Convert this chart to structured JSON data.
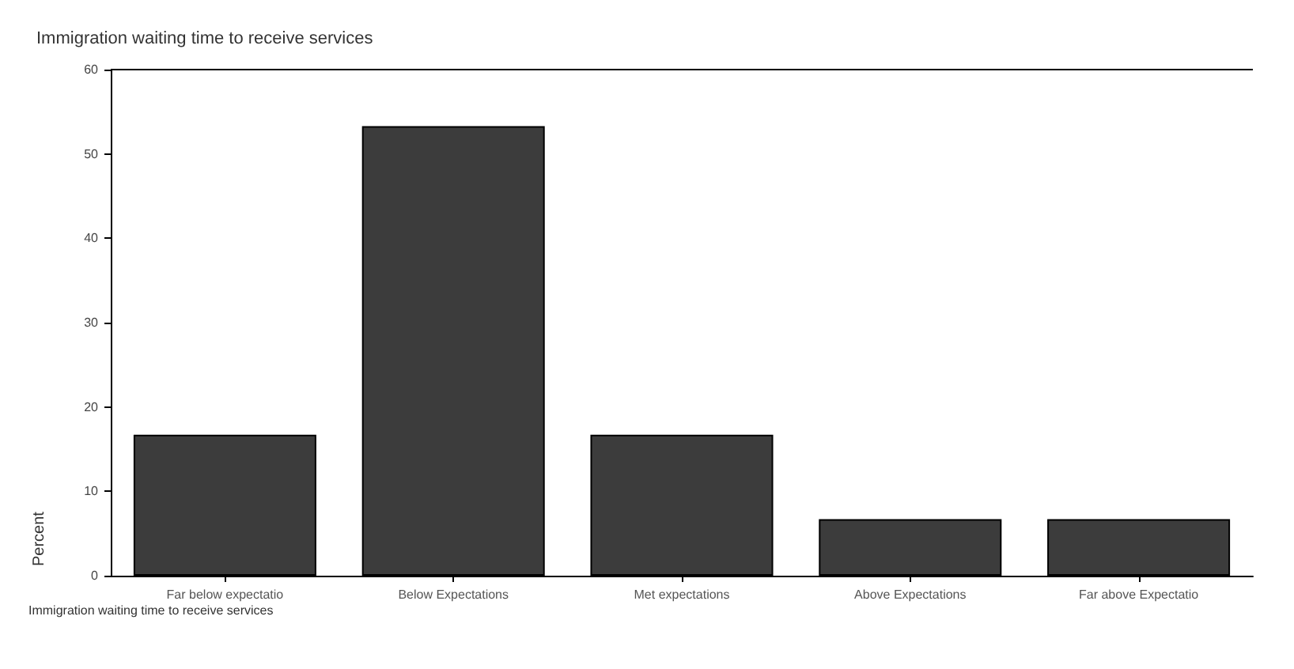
{
  "chart_data": {
    "type": "bar",
    "title": "Immigration waiting time to receive services",
    "xlabel": "Immigration waiting time to receive services",
    "ylabel": "Percent",
    "categories": [
      "Far below expectatio",
      "Below Expectations",
      "Met expectations",
      "Above Expectations",
      "Far above Expectatio"
    ],
    "values": [
      16.7,
      53.3,
      16.7,
      6.7,
      6.7
    ],
    "color": "#3c3c3c",
    "ylim": [
      0,
      60
    ],
    "yticks": [
      0,
      10,
      20,
      30,
      40,
      50,
      60
    ],
    "grid": false
  }
}
